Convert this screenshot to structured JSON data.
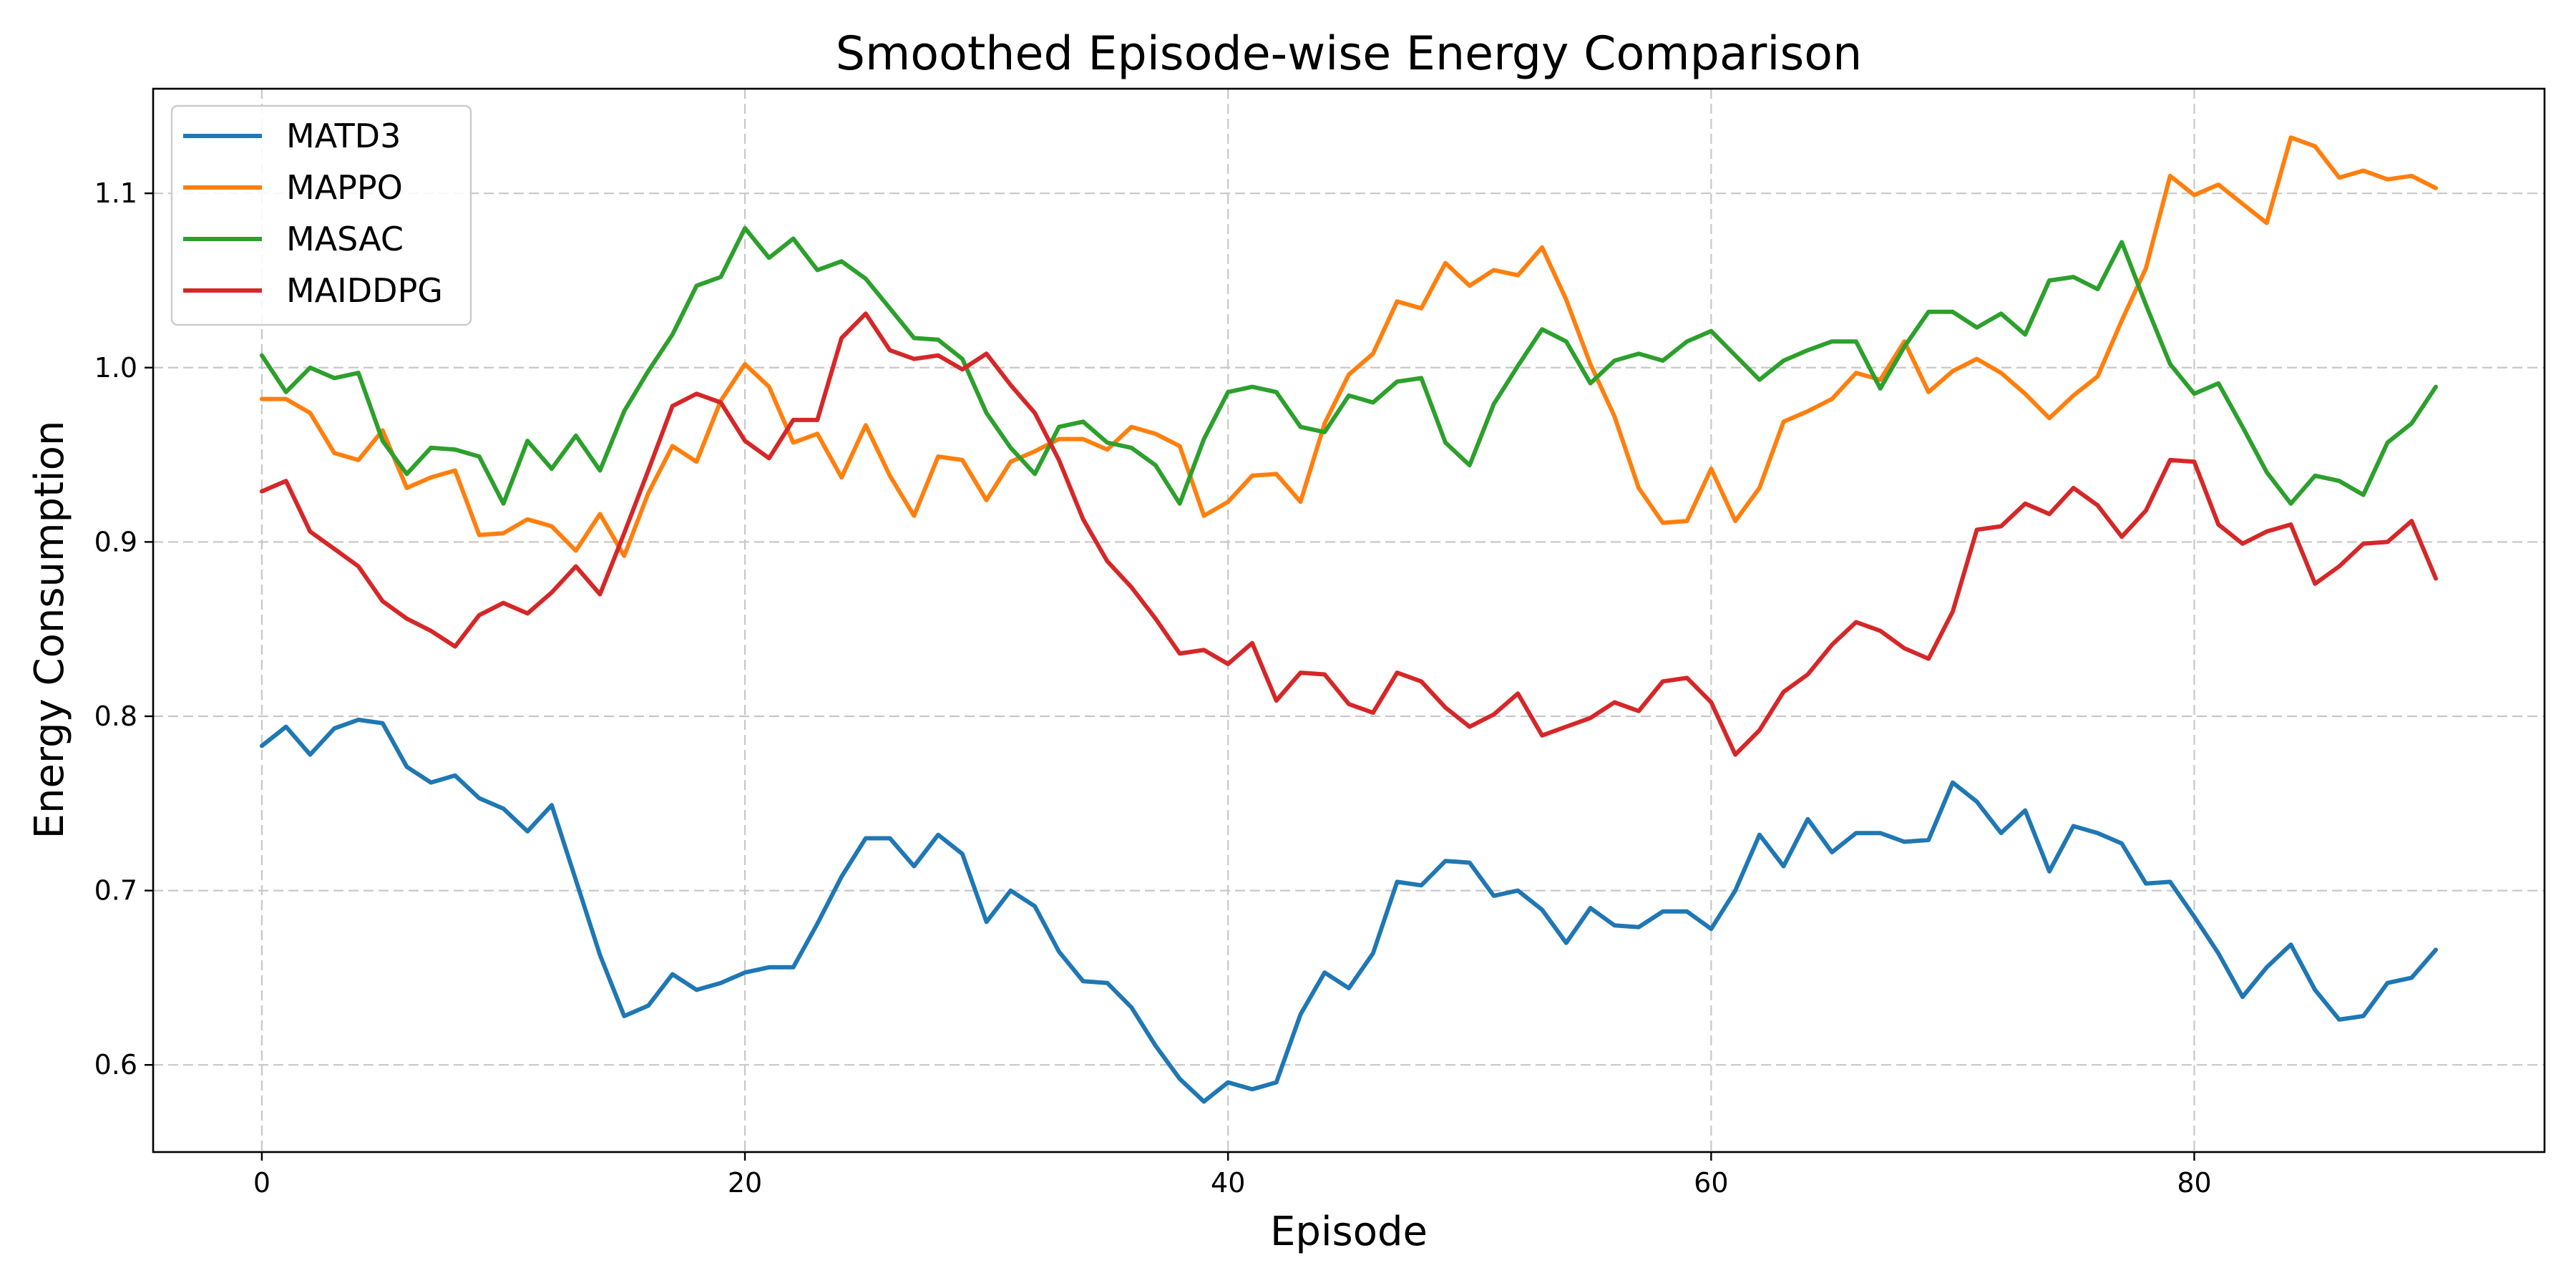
{
  "chart_data": {
    "type": "line",
    "title": "Smoothed Episode-wise Energy Comparison",
    "xlabel": "Episode",
    "ylabel": "Energy Consumption",
    "xlim": [
      -4.5,
      94.5
    ],
    "ylim": [
      0.55,
      1.16
    ],
    "xticks": [
      0,
      20,
      40,
      60,
      80
    ],
    "yticks": [
      0.6,
      0.7,
      0.8,
      0.9,
      1.0,
      1.1
    ],
    "grid": true,
    "legend_position": "top-left",
    "x": [
      0,
      1,
      2,
      3,
      4,
      5,
      6,
      7,
      8,
      9,
      10,
      11,
      12,
      13,
      14,
      15,
      16,
      17,
      18,
      19,
      20,
      21,
      22,
      23,
      24,
      25,
      26,
      27,
      28,
      29,
      30,
      31,
      32,
      33,
      34,
      35,
      36,
      37,
      38,
      39,
      40,
      41,
      42,
      43,
      44,
      45,
      46,
      47,
      48,
      49,
      50,
      51,
      52,
      53,
      54,
      55,
      56,
      57,
      58,
      59,
      60,
      61,
      62,
      63,
      64,
      65,
      66,
      67,
      68,
      69,
      70,
      71,
      72,
      73,
      74,
      75,
      76,
      77,
      78,
      79,
      80,
      81,
      82,
      83,
      84,
      85,
      86,
      87,
      88,
      89,
      90
    ],
    "series": [
      {
        "name": "MATD3",
        "color": "#1f77b4",
        "values": [
          0.783,
          0.794,
          0.778,
          0.793,
          0.798,
          0.796,
          0.771,
          0.762,
          0.766,
          0.753,
          0.747,
          0.734,
          0.749,
          0.706,
          0.663,
          0.628,
          0.634,
          0.652,
          0.643,
          0.647,
          0.653,
          0.656,
          0.656,
          0.681,
          0.708,
          0.73,
          0.73,
          0.714,
          0.732,
          0.721,
          0.682,
          0.7,
          0.691,
          0.665,
          0.648,
          0.647,
          0.633,
          0.611,
          0.592,
          0.579,
          0.59,
          0.586,
          0.59,
          0.629,
          0.653,
          0.644,
          0.664,
          0.705,
          0.703,
          0.717,
          0.716,
          0.697,
          0.7,
          0.689,
          0.67,
          0.69,
          0.68,
          0.679,
          0.688,
          0.688,
          0.678,
          0.7,
          0.732,
          0.714,
          0.741,
          0.722,
          0.733,
          0.733,
          0.728,
          0.729,
          0.762,
          0.751,
          0.733,
          0.746,
          0.711,
          0.737,
          0.733,
          0.727,
          0.704,
          0.705,
          0.685,
          0.664,
          0.639,
          0.656,
          0.669,
          0.643,
          0.626,
          0.628,
          0.647,
          0.65,
          0.666
        ]
      },
      {
        "name": "MAPPO",
        "color": "#ff7f0e",
        "values": [
          0.982,
          0.982,
          0.974,
          0.951,
          0.947,
          0.964,
          0.931,
          0.937,
          0.941,
          0.904,
          0.905,
          0.913,
          0.909,
          0.895,
          0.916,
          0.892,
          0.928,
          0.955,
          0.946,
          0.981,
          1.002,
          0.989,
          0.957,
          0.962,
          0.937,
          0.967,
          0.938,
          0.915,
          0.949,
          0.947,
          0.924,
          0.946,
          0.952,
          0.959,
          0.959,
          0.953,
          0.966,
          0.962,
          0.955,
          0.915,
          0.923,
          0.938,
          0.939,
          0.923,
          0.968,
          0.996,
          1.008,
          1.038,
          1.034,
          1.06,
          1.047,
          1.056,
          1.053,
          1.069,
          1.039,
          1.002,
          0.972,
          0.931,
          0.911,
          0.912,
          0.942,
          0.912,
          0.931,
          0.969,
          0.975,
          0.982,
          0.997,
          0.993,
          1.015,
          0.986,
          0.998,
          1.005,
          0.997,
          0.985,
          0.971,
          0.984,
          0.995,
          1.027,
          1.057,
          1.11,
          1.099,
          1.105,
          1.094,
          1.083,
          1.132,
          1.127,
          1.109,
          1.113,
          1.108,
          1.11,
          1.103
        ]
      },
      {
        "name": "MASAC",
        "color": "#2ca02c",
        "values": [
          1.007,
          0.986,
          1.0,
          0.994,
          0.997,
          0.958,
          0.939,
          0.954,
          0.953,
          0.949,
          0.922,
          0.958,
          0.942,
          0.961,
          0.941,
          0.975,
          0.998,
          1.019,
          1.047,
          1.052,
          1.08,
          1.063,
          1.074,
          1.056,
          1.061,
          1.051,
          1.034,
          1.017,
          1.016,
          1.005,
          0.974,
          0.954,
          0.939,
          0.966,
          0.969,
          0.957,
          0.954,
          0.944,
          0.922,
          0.959,
          0.986,
          0.989,
          0.986,
          0.966,
          0.963,
          0.984,
          0.98,
          0.992,
          0.994,
          0.957,
          0.944,
          0.979,
          1.001,
          1.022,
          1.015,
          0.991,
          1.004,
          1.008,
          1.004,
          1.015,
          1.021,
          1.007,
          0.993,
          1.004,
          1.01,
          1.015,
          1.015,
          0.988,
          1.012,
          1.032,
          1.032,
          1.023,
          1.031,
          1.019,
          1.05,
          1.052,
          1.045,
          1.072,
          1.036,
          1.002,
          0.985,
          0.991,
          0.966,
          0.94,
          0.922,
          0.938,
          0.935,
          0.927,
          0.957,
          0.968,
          0.989
        ]
      },
      {
        "name": "MAIDDPG",
        "color": "#d62728",
        "values": [
          0.929,
          0.935,
          0.906,
          0.896,
          0.886,
          0.866,
          0.856,
          0.849,
          0.84,
          0.858,
          0.865,
          0.859,
          0.871,
          0.886,
          0.87,
          0.905,
          0.941,
          0.978,
          0.985,
          0.98,
          0.958,
          0.948,
          0.97,
          0.97,
          1.017,
          1.031,
          1.01,
          1.005,
          1.007,
          0.999,
          1.008,
          0.99,
          0.974,
          0.947,
          0.913,
          0.889,
          0.874,
          0.856,
          0.836,
          0.838,
          0.83,
          0.842,
          0.809,
          0.825,
          0.824,
          0.807,
          0.802,
          0.825,
          0.82,
          0.805,
          0.794,
          0.801,
          0.813,
          0.789,
          0.794,
          0.799,
          0.808,
          0.803,
          0.82,
          0.822,
          0.808,
          0.778,
          0.792,
          0.814,
          0.824,
          0.841,
          0.854,
          0.849,
          0.839,
          0.833,
          0.86,
          0.907,
          0.909,
          0.922,
          0.916,
          0.931,
          0.921,
          0.903,
          0.918,
          0.947,
          0.946,
          0.91,
          0.899,
          0.906,
          0.91,
          0.876,
          0.886,
          0.899,
          0.9,
          0.912,
          0.879
        ]
      }
    ]
  }
}
